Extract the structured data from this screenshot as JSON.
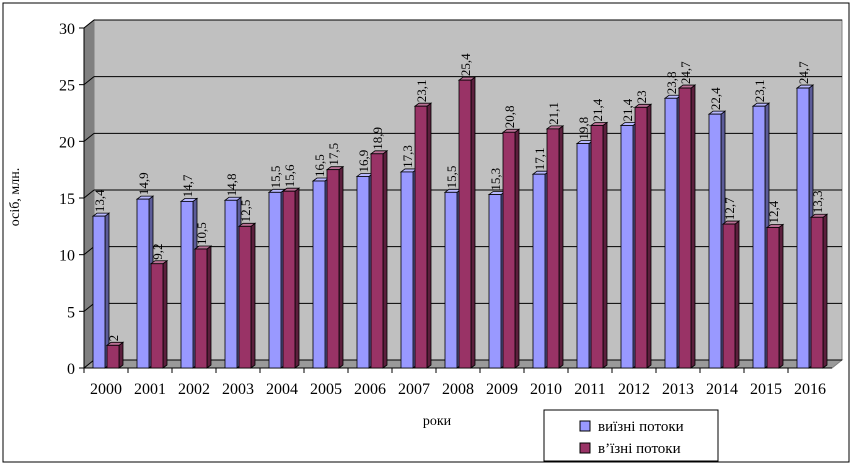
{
  "chart_data": {
    "type": "bar",
    "title": "",
    "xlabel": "роки",
    "ylabel": "осіб, млн.",
    "ylim": [
      0,
      30
    ],
    "yticks": [
      0,
      5,
      10,
      15,
      20,
      25,
      30
    ],
    "grid": true,
    "legend_position": "bottom-right",
    "categories": [
      "2000",
      "2001",
      "2002",
      "2003",
      "2004",
      "2005",
      "2006",
      "2007",
      "2008",
      "2009",
      "2010",
      "2011",
      "2012",
      "2013",
      "2014",
      "2015",
      "2016"
    ],
    "series": [
      {
        "name": "виїзні потоки",
        "color": "#9999ff",
        "values": [
          13.4,
          14.9,
          14.7,
          14.8,
          15.5,
          16.5,
          16.9,
          17.3,
          15.5,
          15.3,
          17.1,
          19.8,
          21.4,
          23.8,
          22.4,
          23.1,
          24.7
        ],
        "labels": [
          "13,4",
          "14,9",
          "14,7",
          "14,8",
          "15,5",
          "16,5",
          "16,9",
          "17,3",
          "15,5",
          "15,3",
          "17,1",
          "19,8",
          "21,4",
          "23,8",
          "22,4",
          "23,1",
          "24,7"
        ]
      },
      {
        "name": "в’їзні потоки",
        "color": "#993366",
        "values": [
          2,
          9.2,
          10.5,
          12.5,
          15.6,
          17.5,
          18.9,
          23.1,
          25.4,
          20.8,
          21.1,
          21.4,
          23,
          24.7,
          12.7,
          12.4,
          13.3
        ],
        "labels": [
          "2",
          "9,2",
          "10,5",
          "12,5",
          "15,6",
          "17,5",
          "18,9",
          "23,1",
          "25,4",
          "20,8",
          "21,1",
          "21,4",
          "23",
          "24,7",
          "12,7",
          "12,4",
          "13,3"
        ]
      }
    ]
  }
}
